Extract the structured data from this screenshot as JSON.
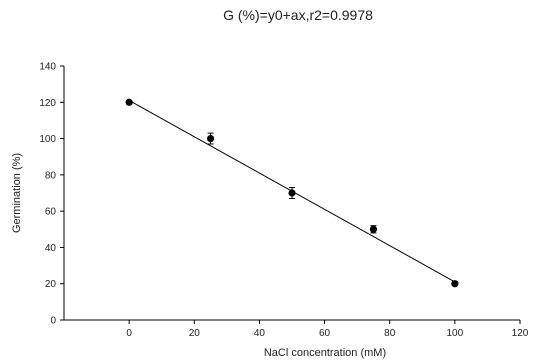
{
  "chart_data": {
    "type": "scatter",
    "title": "G (%)=y0+ax,r2=0.9978",
    "xlabel": "NaCl concentration (mM)",
    "ylabel": "Germination (%)",
    "xlim": [
      -20,
      120
    ],
    "ylim": [
      0,
      140
    ],
    "x_ticks": [
      0,
      20,
      40,
      60,
      80,
      100,
      120
    ],
    "y_ticks": [
      0,
      20,
      40,
      60,
      80,
      100,
      120,
      140
    ],
    "grid": false,
    "points": [
      {
        "x": 0,
        "y": 120,
        "err": 1
      },
      {
        "x": 25,
        "y": 100,
        "err": 3
      },
      {
        "x": 50,
        "y": 70,
        "err": 3
      },
      {
        "x": 75,
        "y": 50,
        "err": 2
      },
      {
        "x": 100,
        "y": 20,
        "err": 1
      }
    ],
    "fit_line": {
      "x": [
        0,
        100
      ],
      "y": [
        121,
        21
      ]
    },
    "colors": {
      "marker": "#000000",
      "line": "#000000",
      "axis": "#000000"
    }
  }
}
